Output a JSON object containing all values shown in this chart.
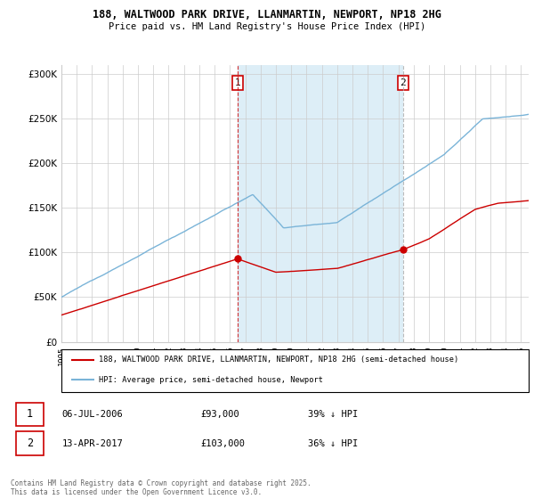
{
  "title": "188, WALTWOOD PARK DRIVE, LLANMARTIN, NEWPORT, NP18 2HG",
  "subtitle": "Price paid vs. HM Land Registry's House Price Index (HPI)",
  "hpi_label": "HPI: Average price, semi-detached house, Newport",
  "property_label": "188, WALTWOOD PARK DRIVE, LLANMARTIN, NEWPORT, NP18 2HG (semi-detached house)",
  "red_color": "#cc0000",
  "blue_color": "#7ab4d8",
  "blue_fill": "#ddeef7",
  "sale1_date": "06-JUL-2006",
  "sale1_price": 93000,
  "sale1_pct": "39% ↓ HPI",
  "sale2_date": "13-APR-2017",
  "sale2_price": 103000,
  "sale2_pct": "36% ↓ HPI",
  "sale1_year": 2006.5,
  "sale2_year": 2017.3,
  "ylim": [
    0,
    310000
  ],
  "xlim_start": 1995,
  "xlim_end": 2025.5,
  "footer": "Contains HM Land Registry data © Crown copyright and database right 2025.\nThis data is licensed under the Open Government Licence v3.0."
}
